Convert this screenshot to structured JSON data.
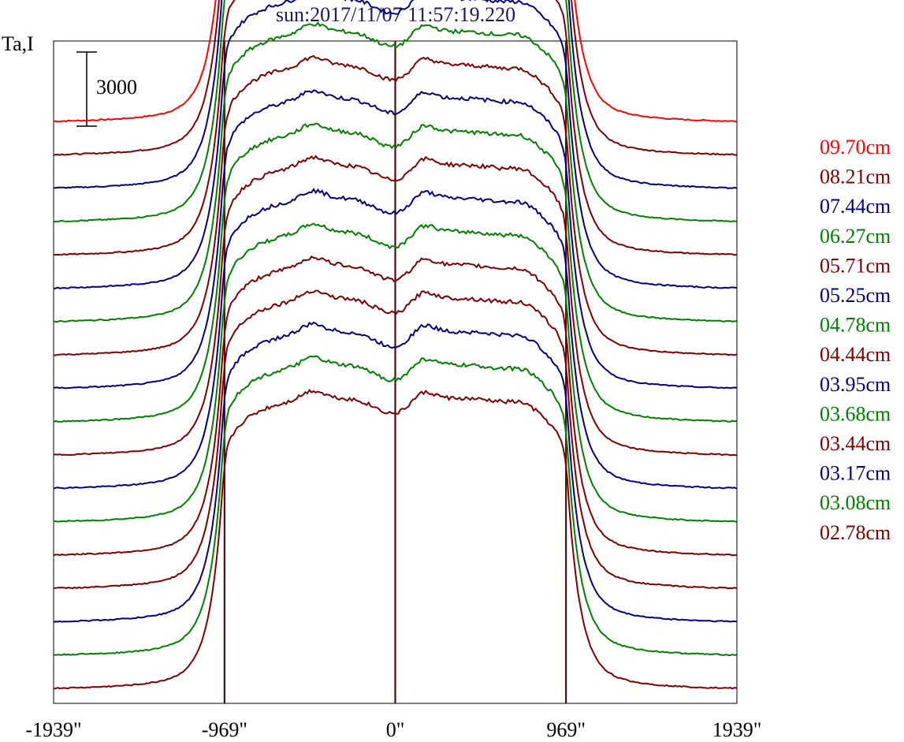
{
  "chart_data": {
    "type": "line",
    "title": "sun:2017/11/07 11:57:19.220",
    "ylabel": "Ta,I",
    "xlim": [
      -1939,
      1939
    ],
    "x_ticks": [
      {
        "value": -1939,
        "label": "-1939\""
      },
      {
        "value": -969,
        "label": "-969\""
      },
      {
        "value": 0,
        "label": "0\""
      },
      {
        "value": 969,
        "label": "969\""
      },
      {
        "value": 1939,
        "label": "1939\""
      }
    ],
    "vertical_markers": [
      -969,
      0,
      969
    ],
    "scale_bar": {
      "value": 3000,
      "label": "3000"
    },
    "grid": false,
    "legend_position": "right",
    "profile_shape": {
      "limb": 969,
      "quiet_level": 0,
      "disk_level": 11800,
      "disk_center_dip": 650,
      "bright_regions": [
        {
          "x": -470,
          "amp": 350
        },
        {
          "x": 150,
          "amp": 450
        },
        {
          "x": 730,
          "amp": 200
        }
      ]
    },
    "series": [
      {
        "name": "09.70cm",
        "color": "#ff0000",
        "offset": 17550
      },
      {
        "name": "08.21cm",
        "color": "#800000",
        "offset": 16200
      },
      {
        "name": "07.44cm",
        "color": "#000080",
        "offset": 14850
      },
      {
        "name": "06.27cm",
        "color": "#008000",
        "offset": 13500
      },
      {
        "name": "05.71cm",
        "color": "#800000",
        "offset": 12150
      },
      {
        "name": "05.25cm",
        "color": "#000080",
        "offset": 10800
      },
      {
        "name": "04.78cm",
        "color": "#008000",
        "offset": 9450
      },
      {
        "name": "04.44cm",
        "color": "#800000",
        "offset": 8100
      },
      {
        "name": "03.95cm",
        "color": "#000080",
        "offset": 6750
      },
      {
        "name": "03.68cm",
        "color": "#008000",
        "offset": 5400
      },
      {
        "name": "03.44cm",
        "color": "#800000",
        "offset": 4050
      },
      {
        "name": "03.17cm",
        "color": "#000080",
        "offset": 2700
      },
      {
        "name": "03.08cm",
        "color": "#008000",
        "offset": 1350
      },
      {
        "name": "02.78cm",
        "color": "#800000",
        "offset": 0
      }
    ],
    "extra_series": [
      {
        "color": "#800000",
        "offset": -1350
      },
      {
        "color": "#000080",
        "offset": -2700
      },
      {
        "color": "#008000",
        "offset": -4050
      },
      {
        "color": "#800000",
        "offset": -5400
      }
    ]
  }
}
